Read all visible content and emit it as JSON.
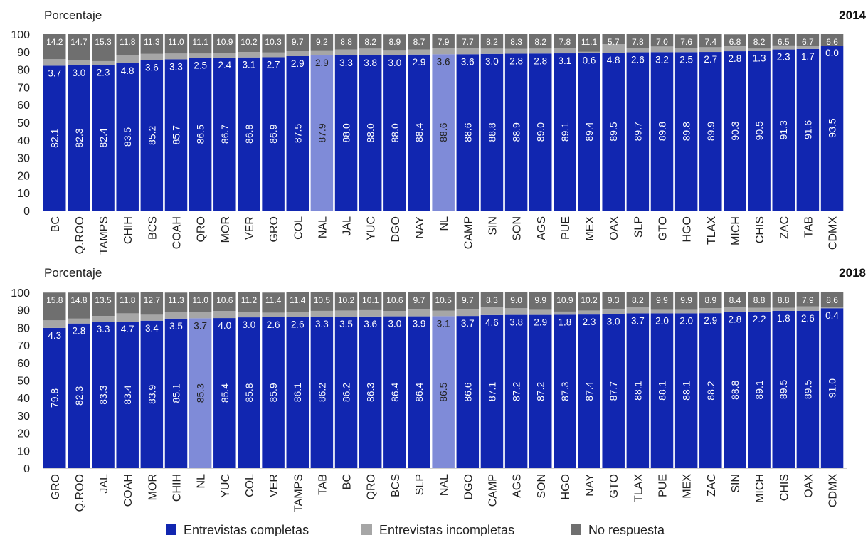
{
  "colors": {
    "complete": "#1126b0",
    "complete_highlight": "#7f8bd8",
    "incomplete": "#a6a6a6",
    "no_response": "#6f6f6f",
    "label_dark": "#222222",
    "label_light": "#ffffff"
  },
  "legend": {
    "placement": "bottom-center",
    "items": [
      "Entrevistas completas",
      "Entrevistas incompletas",
      "No respuesta"
    ]
  },
  "chart_data": [
    {
      "type": "bar",
      "stacked": true,
      "year": "2014",
      "ylabel": "Porcentaje",
      "ylim": [
        0,
        100
      ],
      "yticks": [
        0,
        10,
        20,
        30,
        40,
        50,
        60,
        70,
        80,
        90,
        100
      ],
      "highlight": [
        "NAL",
        "NL"
      ],
      "categories": [
        "BC",
        "Q.ROO",
        "TAMPS",
        "CHIH",
        "BCS",
        "COAH",
        "QRO",
        "MOR",
        "VER",
        "GRO",
        "COL",
        "NAL",
        "JAL",
        "YUC",
        "DGO",
        "NAY",
        "NL",
        "CAMP",
        "SIN",
        "SON",
        "AGS",
        "PUE",
        "MEX",
        "OAX",
        "SLP",
        "GTO",
        "HGO",
        "TLAX",
        "MICH",
        "CHIS",
        "ZAC",
        "TAB",
        "CDMX"
      ],
      "series": [
        {
          "name": "Entrevistas completas",
          "values": [
            82.1,
            82.3,
            82.4,
            83.5,
            85.2,
            85.7,
            86.5,
            86.7,
            86.8,
            86.9,
            87.5,
            87.9,
            88.0,
            88.0,
            88.0,
            88.4,
            88.6,
            88.6,
            88.8,
            88.9,
            89.0,
            89.1,
            89.4,
            89.5,
            89.7,
            89.8,
            89.8,
            89.9,
            90.3,
            90.5,
            91.3,
            91.6,
            93.5
          ]
        },
        {
          "name": "Entrevistas incompletas",
          "values": [
            3.7,
            3.0,
            2.3,
            4.8,
            3.6,
            3.3,
            2.5,
            2.4,
            3.1,
            2.7,
            2.9,
            2.9,
            3.3,
            3.8,
            3.0,
            2.9,
            3.6,
            3.6,
            3.0,
            2.8,
            2.8,
            3.1,
            0.6,
            4.8,
            2.6,
            3.2,
            2.5,
            2.7,
            2.8,
            1.3,
            2.3,
            1.7,
            0.0
          ]
        },
        {
          "name": "No respuesta",
          "values": [
            14.2,
            14.7,
            15.3,
            11.8,
            11.3,
            11.0,
            11.1,
            10.9,
            10.2,
            10.3,
            9.7,
            9.2,
            8.8,
            8.2,
            8.9,
            8.7,
            7.9,
            7.7,
            8.2,
            8.3,
            8.2,
            7.8,
            11.1,
            5.7,
            7.8,
            7.0,
            7.6,
            7.4,
            6.8,
            8.2,
            6.5,
            6.7,
            6.6
          ]
        }
      ]
    },
    {
      "type": "bar",
      "stacked": true,
      "year": "2018",
      "ylabel": "Porcentaje",
      "ylim": [
        0,
        100
      ],
      "yticks": [
        0,
        10,
        20,
        30,
        40,
        50,
        60,
        70,
        80,
        90,
        100
      ],
      "highlight": [
        "NL",
        "NAL"
      ],
      "categories": [
        "GRO",
        "Q.ROO",
        "JAL",
        "COAH",
        "MOR",
        "CHIH",
        "NL",
        "YUC",
        "COL",
        "VER",
        "TAMPS",
        "TAB",
        "BC",
        "QRO",
        "BCS",
        "SLP",
        "NAL",
        "DGO",
        "CAMP",
        "AGS",
        "SON",
        "HGO",
        "NAY",
        "GTO",
        "TLAX",
        "PUE",
        "MEX",
        "ZAC",
        "SIN",
        "MICH",
        "CHIS",
        "OAX",
        "CDMX"
      ],
      "series": [
        {
          "name": "Entrevistas completas",
          "values": [
            79.8,
            82.3,
            83.3,
            83.4,
            83.9,
            85.1,
            85.3,
            85.4,
            85.8,
            85.9,
            86.1,
            86.2,
            86.2,
            86.3,
            86.4,
            86.4,
            86.5,
            86.6,
            87.1,
            87.2,
            87.2,
            87.3,
            87.4,
            87.7,
            88.1,
            88.1,
            88.1,
            88.2,
            88.8,
            89.1,
            89.5,
            89.5,
            91.0
          ]
        },
        {
          "name": "Entrevistas incompletas",
          "values": [
            4.3,
            2.8,
            3.3,
            4.7,
            3.4,
            3.5,
            3.7,
            4.0,
            3.0,
            2.6,
            2.6,
            3.3,
            3.5,
            3.6,
            3.0,
            3.9,
            3.1,
            3.7,
            4.6,
            3.8,
            2.9,
            1.8,
            2.3,
            3.0,
            3.7,
            2.0,
            2.0,
            2.9,
            2.8,
            2.2,
            1.8,
            2.6,
            0.4
          ]
        },
        {
          "name": "No respuesta",
          "values": [
            15.8,
            14.8,
            13.5,
            11.8,
            12.7,
            11.3,
            11.0,
            10.6,
            11.2,
            11.4,
            11.4,
            10.5,
            10.2,
            10.1,
            10.6,
            9.7,
            10.5,
            9.7,
            8.3,
            9.0,
            9.9,
            10.9,
            10.2,
            9.3,
            8.2,
            9.9,
            9.9,
            8.9,
            8.4,
            8.8,
            8.8,
            7.9,
            8.6
          ]
        }
      ]
    }
  ]
}
